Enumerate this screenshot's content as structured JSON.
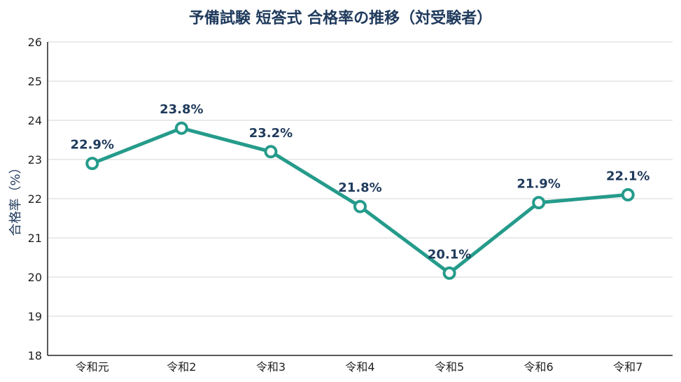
{
  "chart_data": {
    "type": "line",
    "title": "予備試験 短答式 合格率の推移（対受験者）",
    "xlabel": "",
    "ylabel": "合格率（%）",
    "categories": [
      "令和元",
      "令和2",
      "令和3",
      "令和4",
      "令和5",
      "令和6",
      "令和7"
    ],
    "series": [
      {
        "values": [
          22.9,
          23.8,
          23.2,
          21.8,
          20.1,
          21.9,
          22.1
        ],
        "labels": [
          "22.9%",
          "23.8%",
          "23.2%",
          "21.8%",
          "20.1%",
          "21.9%",
          "22.1%"
        ]
      }
    ],
    "yticks": [
      "18",
      "19",
      "20",
      "21",
      "22",
      "23",
      "24",
      "25",
      "26"
    ],
    "ylim": [
      18,
      26
    ],
    "grid": true,
    "legend": "none",
    "colors": {
      "line": "#259b8b",
      "title": "#1f3a5c",
      "label": "#1f3a5c",
      "grid": "#dddddd",
      "axis": "#222222"
    }
  }
}
